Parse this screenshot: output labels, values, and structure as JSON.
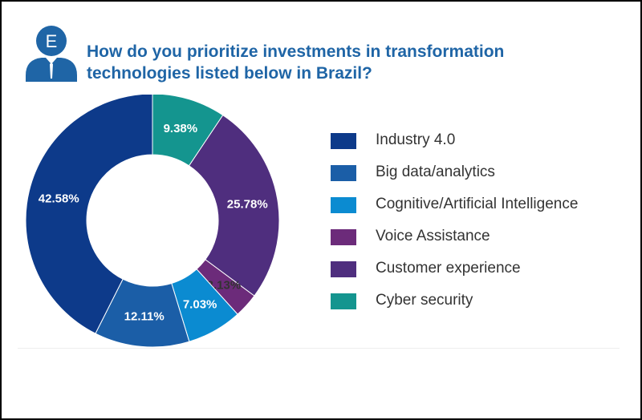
{
  "header": {
    "badge_letter": "E",
    "title_line1": "How do you prioritize investments in transformation",
    "title_line2": "technologies listed below in Brazil?"
  },
  "colors": {
    "title": "#1f65a6",
    "badge": "#1f65a6"
  },
  "chart_data": {
    "type": "pie",
    "donut": true,
    "title": "How do you prioritize investments in transformation technologies listed below in Brazil?",
    "categories": [
      "Industry 4.0",
      "Big data/analytics",
      "Cognitive/Artificial Intelligence",
      "Voice Assistance",
      "Customer experience",
      "Cyber security"
    ],
    "values": [
      42.58,
      12.11,
      7.03,
      3.13,
      25.78,
      9.38
    ],
    "labels": [
      "42.58%",
      "12.11%",
      "7.03%",
      "3.13%",
      "25.78%",
      "9.38%"
    ],
    "colors": [
      "#0d3a8a",
      "#1b5ea7",
      "#0b8bd1",
      "#6c2b7a",
      "#4f2e7e",
      "#14958f"
    ],
    "label_colors": [
      "#ffffff",
      "#ffffff",
      "#ffffff",
      "#333333",
      "#ffffff",
      "#ffffff"
    ],
    "legend_position": "right"
  }
}
